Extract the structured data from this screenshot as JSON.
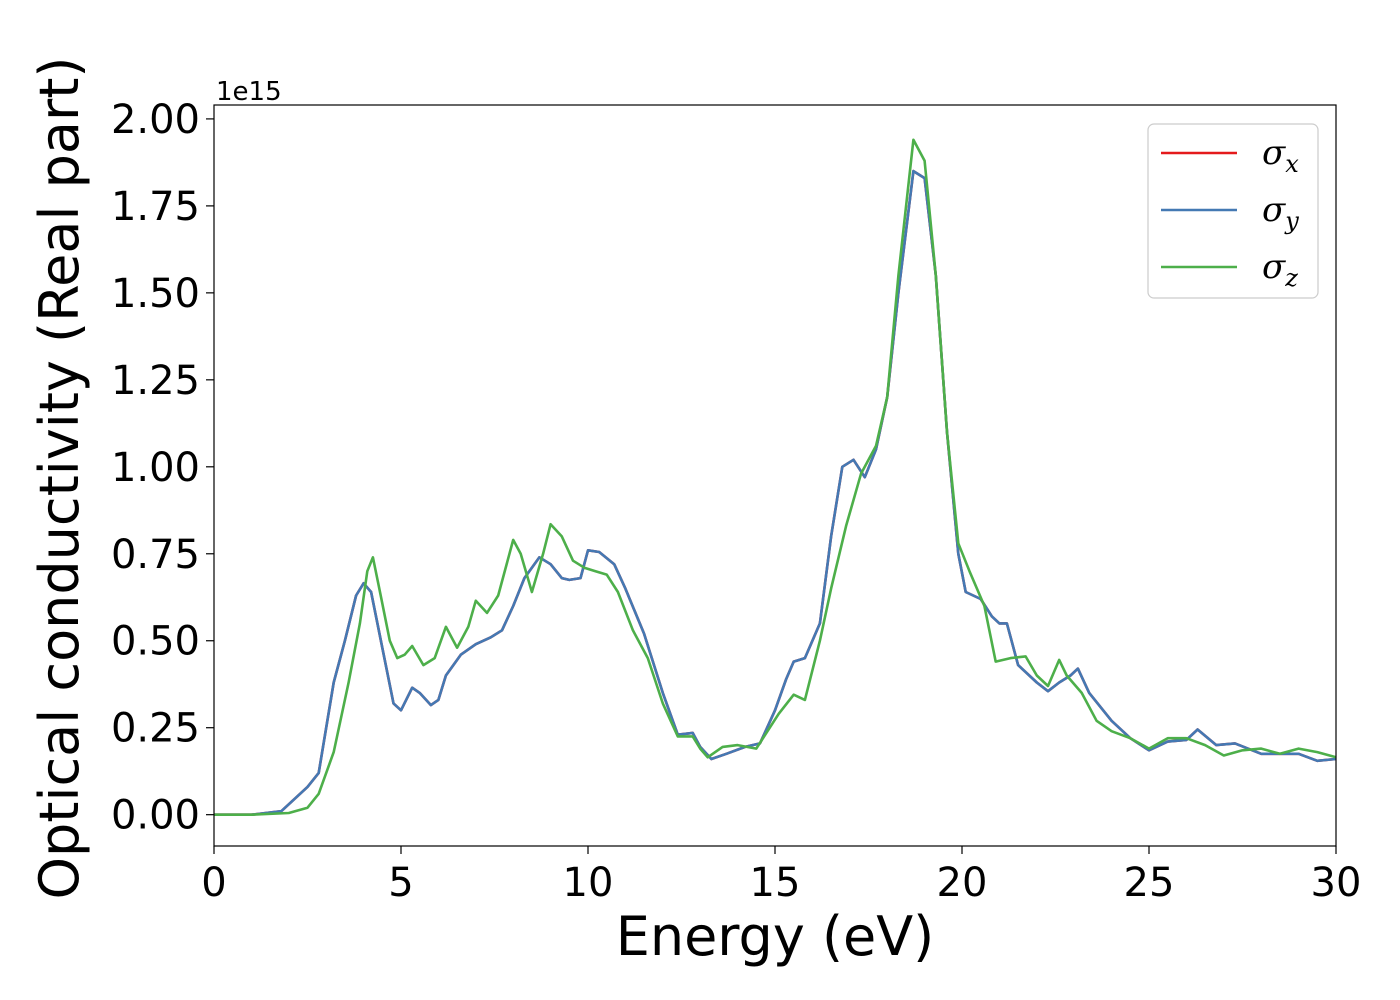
{
  "chart_data": {
    "type": "line",
    "xlabel": "Energy (eV)",
    "ylabel": "Optical conductivity (Real part)",
    "y_offset_label": "1e15",
    "xlim": [
      0,
      30
    ],
    "ylim": [
      -0.09,
      2.04
    ],
    "x_ticks": [
      0,
      5,
      10,
      15,
      20,
      25,
      30
    ],
    "x_tick_labels": [
      "0",
      "5",
      "10",
      "15",
      "20",
      "25",
      "30"
    ],
    "y_ticks": [
      0,
      0.25,
      0.5,
      0.75,
      1.0,
      1.25,
      1.5,
      1.75,
      2.0
    ],
    "y_tick_labels": [
      "0.00",
      "0.25",
      "0.50",
      "0.75",
      "1.00",
      "1.25",
      "1.50",
      "1.75",
      "2.00"
    ],
    "grid": false,
    "legend_position": "top-right",
    "series": [
      {
        "name": "σ",
        "subscript": "x",
        "color": "#e41a1c",
        "points": [
          [
            0,
            0
          ],
          [
            1,
            0
          ],
          [
            1.8,
            0.01
          ],
          [
            2.2,
            0.05
          ],
          [
            2.5,
            0.08
          ],
          [
            2.8,
            0.12
          ],
          [
            3.2,
            0.38
          ],
          [
            3.5,
            0.5
          ],
          [
            3.8,
            0.63
          ],
          [
            4.0,
            0.665
          ],
          [
            4.2,
            0.64
          ],
          [
            4.5,
            0.48
          ],
          [
            4.8,
            0.32
          ],
          [
            5.0,
            0.3
          ],
          [
            5.3,
            0.365
          ],
          [
            5.5,
            0.35
          ],
          [
            5.8,
            0.315
          ],
          [
            6.0,
            0.33
          ],
          [
            6.2,
            0.4
          ],
          [
            6.6,
            0.46
          ],
          [
            7.0,
            0.49
          ],
          [
            7.4,
            0.51
          ],
          [
            7.7,
            0.53
          ],
          [
            8.0,
            0.6
          ],
          [
            8.3,
            0.68
          ],
          [
            8.7,
            0.74
          ],
          [
            9.0,
            0.72
          ],
          [
            9.3,
            0.68
          ],
          [
            9.5,
            0.675
          ],
          [
            9.8,
            0.68
          ],
          [
            10.0,
            0.76
          ],
          [
            10.3,
            0.755
          ],
          [
            10.7,
            0.72
          ],
          [
            11.0,
            0.65
          ],
          [
            11.5,
            0.52
          ],
          [
            12.0,
            0.35
          ],
          [
            12.4,
            0.23
          ],
          [
            12.8,
            0.235
          ],
          [
            13.0,
            0.195
          ],
          [
            13.3,
            0.16
          ],
          [
            13.7,
            0.175
          ],
          [
            14.2,
            0.195
          ],
          [
            14.6,
            0.205
          ],
          [
            15.0,
            0.3
          ],
          [
            15.3,
            0.39
          ],
          [
            15.5,
            0.44
          ],
          [
            15.8,
            0.45
          ],
          [
            16.2,
            0.55
          ],
          [
            16.5,
            0.8
          ],
          [
            16.8,
            1.0
          ],
          [
            17.1,
            1.02
          ],
          [
            17.4,
            0.97
          ],
          [
            17.7,
            1.05
          ],
          [
            18.0,
            1.2
          ],
          [
            18.3,
            1.5
          ],
          [
            18.7,
            1.85
          ],
          [
            19.0,
            1.83
          ],
          [
            19.3,
            1.55
          ],
          [
            19.6,
            1.1
          ],
          [
            19.9,
            0.75
          ],
          [
            20.1,
            0.64
          ],
          [
            20.5,
            0.62
          ],
          [
            20.8,
            0.57
          ],
          [
            21.0,
            0.55
          ],
          [
            21.2,
            0.55
          ],
          [
            21.5,
            0.43
          ],
          [
            22.0,
            0.38
          ],
          [
            22.3,
            0.355
          ],
          [
            22.6,
            0.38
          ],
          [
            22.9,
            0.4
          ],
          [
            23.1,
            0.42
          ],
          [
            23.4,
            0.35
          ],
          [
            24.0,
            0.27
          ],
          [
            24.5,
            0.22
          ],
          [
            25.0,
            0.185
          ],
          [
            25.5,
            0.21
          ],
          [
            26.0,
            0.215
          ],
          [
            26.3,
            0.245
          ],
          [
            26.8,
            0.2
          ],
          [
            27.3,
            0.205
          ],
          [
            28.0,
            0.175
          ],
          [
            28.5,
            0.175
          ],
          [
            29.0,
            0.175
          ],
          [
            29.5,
            0.155
          ],
          [
            30.0,
            0.16
          ]
        ]
      },
      {
        "name": "σ",
        "subscript": "y",
        "color": "#4479b3",
        "points": [
          [
            0,
            0
          ],
          [
            1,
            0
          ],
          [
            1.8,
            0.01
          ],
          [
            2.2,
            0.05
          ],
          [
            2.5,
            0.08
          ],
          [
            2.8,
            0.12
          ],
          [
            3.2,
            0.38
          ],
          [
            3.5,
            0.5
          ],
          [
            3.8,
            0.63
          ],
          [
            4.0,
            0.665
          ],
          [
            4.2,
            0.64
          ],
          [
            4.5,
            0.48
          ],
          [
            4.8,
            0.32
          ],
          [
            5.0,
            0.3
          ],
          [
            5.3,
            0.365
          ],
          [
            5.5,
            0.35
          ],
          [
            5.8,
            0.315
          ],
          [
            6.0,
            0.33
          ],
          [
            6.2,
            0.4
          ],
          [
            6.6,
            0.46
          ],
          [
            7.0,
            0.49
          ],
          [
            7.4,
            0.51
          ],
          [
            7.7,
            0.53
          ],
          [
            8.0,
            0.6
          ],
          [
            8.3,
            0.68
          ],
          [
            8.7,
            0.74
          ],
          [
            9.0,
            0.72
          ],
          [
            9.3,
            0.68
          ],
          [
            9.5,
            0.675
          ],
          [
            9.8,
            0.68
          ],
          [
            10.0,
            0.76
          ],
          [
            10.3,
            0.755
          ],
          [
            10.7,
            0.72
          ],
          [
            11.0,
            0.65
          ],
          [
            11.5,
            0.52
          ],
          [
            12.0,
            0.35
          ],
          [
            12.4,
            0.23
          ],
          [
            12.8,
            0.235
          ],
          [
            13.0,
            0.195
          ],
          [
            13.3,
            0.16
          ],
          [
            13.7,
            0.175
          ],
          [
            14.2,
            0.195
          ],
          [
            14.6,
            0.205
          ],
          [
            15.0,
            0.3
          ],
          [
            15.3,
            0.39
          ],
          [
            15.5,
            0.44
          ],
          [
            15.8,
            0.45
          ],
          [
            16.2,
            0.55
          ],
          [
            16.5,
            0.8
          ],
          [
            16.8,
            1.0
          ],
          [
            17.1,
            1.02
          ],
          [
            17.4,
            0.97
          ],
          [
            17.7,
            1.05
          ],
          [
            18.0,
            1.2
          ],
          [
            18.3,
            1.5
          ],
          [
            18.7,
            1.85
          ],
          [
            19.0,
            1.83
          ],
          [
            19.3,
            1.55
          ],
          [
            19.6,
            1.1
          ],
          [
            19.9,
            0.75
          ],
          [
            20.1,
            0.64
          ],
          [
            20.5,
            0.62
          ],
          [
            20.8,
            0.57
          ],
          [
            21.0,
            0.55
          ],
          [
            21.2,
            0.55
          ],
          [
            21.5,
            0.43
          ],
          [
            22.0,
            0.38
          ],
          [
            22.3,
            0.355
          ],
          [
            22.6,
            0.38
          ],
          [
            22.9,
            0.4
          ],
          [
            23.1,
            0.42
          ],
          [
            23.4,
            0.35
          ],
          [
            24.0,
            0.27
          ],
          [
            24.5,
            0.22
          ],
          [
            25.0,
            0.185
          ],
          [
            25.5,
            0.21
          ],
          [
            26.0,
            0.215
          ],
          [
            26.3,
            0.245
          ],
          [
            26.8,
            0.2
          ],
          [
            27.3,
            0.205
          ],
          [
            28.0,
            0.175
          ],
          [
            28.5,
            0.175
          ],
          [
            29.0,
            0.175
          ],
          [
            29.5,
            0.155
          ],
          [
            30.0,
            0.16
          ]
        ]
      },
      {
        "name": "σ",
        "subscript": "z",
        "color": "#4daf4a",
        "points": [
          [
            0,
            0
          ],
          [
            1,
            0
          ],
          [
            2.0,
            0.005
          ],
          [
            2.5,
            0.02
          ],
          [
            2.8,
            0.06
          ],
          [
            3.2,
            0.18
          ],
          [
            3.6,
            0.38
          ],
          [
            3.9,
            0.55
          ],
          [
            4.1,
            0.7
          ],
          [
            4.25,
            0.74
          ],
          [
            4.4,
            0.66
          ],
          [
            4.7,
            0.5
          ],
          [
            4.9,
            0.45
          ],
          [
            5.1,
            0.46
          ],
          [
            5.3,
            0.485
          ],
          [
            5.6,
            0.43
          ],
          [
            5.9,
            0.45
          ],
          [
            6.2,
            0.54
          ],
          [
            6.5,
            0.48
          ],
          [
            6.8,
            0.54
          ],
          [
            7.0,
            0.615
          ],
          [
            7.3,
            0.58
          ],
          [
            7.6,
            0.63
          ],
          [
            8.0,
            0.79
          ],
          [
            8.2,
            0.75
          ],
          [
            8.5,
            0.64
          ],
          [
            8.8,
            0.75
          ],
          [
            9.0,
            0.835
          ],
          [
            9.3,
            0.8
          ],
          [
            9.6,
            0.73
          ],
          [
            9.9,
            0.71
          ],
          [
            10.2,
            0.7
          ],
          [
            10.5,
            0.69
          ],
          [
            10.8,
            0.64
          ],
          [
            11.2,
            0.53
          ],
          [
            11.6,
            0.45
          ],
          [
            12.0,
            0.32
          ],
          [
            12.4,
            0.225
          ],
          [
            12.8,
            0.225
          ],
          [
            13.0,
            0.19
          ],
          [
            13.2,
            0.165
          ],
          [
            13.6,
            0.195
          ],
          [
            14.0,
            0.2
          ],
          [
            14.5,
            0.19
          ],
          [
            14.8,
            0.24
          ],
          [
            15.1,
            0.29
          ],
          [
            15.5,
            0.345
          ],
          [
            15.8,
            0.33
          ],
          [
            16.2,
            0.5
          ],
          [
            16.5,
            0.65
          ],
          [
            16.9,
            0.83
          ],
          [
            17.3,
            0.98
          ],
          [
            17.7,
            1.06
          ],
          [
            18.0,
            1.2
          ],
          [
            18.3,
            1.55
          ],
          [
            18.7,
            1.94
          ],
          [
            19.0,
            1.88
          ],
          [
            19.3,
            1.55
          ],
          [
            19.6,
            1.1
          ],
          [
            19.9,
            0.78
          ],
          [
            20.2,
            0.7
          ],
          [
            20.6,
            0.6
          ],
          [
            20.9,
            0.44
          ],
          [
            21.3,
            0.45
          ],
          [
            21.7,
            0.455
          ],
          [
            22.0,
            0.4
          ],
          [
            22.3,
            0.37
          ],
          [
            22.6,
            0.445
          ],
          [
            22.8,
            0.4
          ],
          [
            23.2,
            0.35
          ],
          [
            23.6,
            0.27
          ],
          [
            24.0,
            0.24
          ],
          [
            24.5,
            0.22
          ],
          [
            25.0,
            0.19
          ],
          [
            25.5,
            0.22
          ],
          [
            26.0,
            0.22
          ],
          [
            26.5,
            0.2
          ],
          [
            27.0,
            0.17
          ],
          [
            27.5,
            0.185
          ],
          [
            28.0,
            0.19
          ],
          [
            28.5,
            0.175
          ],
          [
            29.0,
            0.19
          ],
          [
            29.5,
            0.18
          ],
          [
            30.0,
            0.165
          ]
        ]
      }
    ]
  }
}
